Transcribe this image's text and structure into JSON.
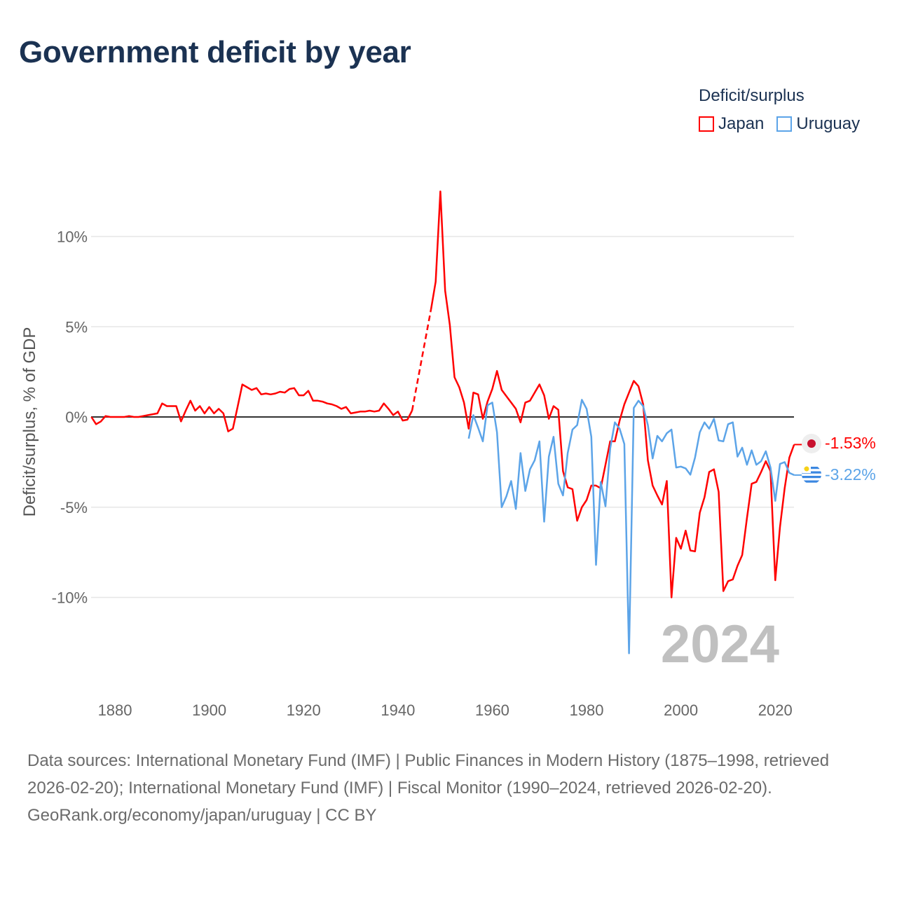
{
  "title": "Government deficit by year",
  "legend": {
    "title": "Deficit/surplus",
    "items": [
      {
        "label": "Japan",
        "color": "#ff0000"
      },
      {
        "label": "Uruguay",
        "color": "#5ca4e8"
      }
    ]
  },
  "footer": {
    "sources": "Data sources: International Monetary Fund (IMF) | Public Finances in Modern History (1875–1998, retrieved 2026-02-20); International Monetary Fund (IMF) | Fiscal Monitor (1990–2024, retrieved 2026-02-20).",
    "credit": "GeoRank.org/economy/japan/uruguay | CC BY"
  },
  "chart_data": {
    "type": "line",
    "title": "Government deficit by year",
    "xlabel": "",
    "ylabel": "Deficit/surplus, % of GDP",
    "xlim": [
      1875,
      2024
    ],
    "ylim": [
      -13.5,
      13
    ],
    "x_ticks": [
      1880,
      1900,
      1920,
      1940,
      1960,
      1980,
      2000,
      2020
    ],
    "y_ticks": [
      10,
      5,
      0,
      -5,
      -10
    ],
    "y_tick_labels": [
      "10%",
      "5%",
      "0%",
      "-5%",
      "-10%"
    ],
    "grid": true,
    "legend_position": "top-right",
    "current_year_label": "2024",
    "series": [
      {
        "name": "Japan",
        "color": "#ff0000",
        "start_year": 1875,
        "end_label": "-1.53%",
        "values": [
          0,
          -0.4,
          -0.25,
          0.05,
          0,
          0,
          0,
          0,
          0.05,
          0,
          0,
          0.05,
          0.1,
          0.15,
          0.2,
          0.75,
          0.6,
          0.6,
          0.6,
          -0.25,
          0.35,
          0.9,
          0.35,
          0.6,
          0.2,
          0.55,
          0.2,
          0.45,
          0.2,
          -0.8,
          -0.65,
          0.55,
          1.8,
          1.65,
          1.5,
          1.6,
          1.25,
          1.3,
          1.25,
          1.3,
          1.4,
          1.35,
          1.55,
          1.6,
          1.2,
          1.2,
          1.45,
          0.9,
          0.9,
          0.85,
          0.75,
          0.7,
          0.6,
          0.45,
          0.55,
          0.2,
          0.25,
          0.3,
          0.3,
          0.35,
          0.3,
          0.35,
          0.75,
          0.45,
          0.1,
          0.3,
          -0.2,
          -0.15,
          0.35,
          null,
          null,
          null,
          5.95,
          7.5,
          12.5,
          7.0,
          5.1,
          2.2,
          1.65,
          0.8,
          -0.65,
          1.35,
          1.25,
          -0.1,
          0.85,
          1.55,
          2.55,
          1.5,
          1.15,
          0.8,
          0.45,
          -0.3,
          0.8,
          0.9,
          1.35,
          1.8,
          1.2,
          -0.1,
          0.6,
          0.4,
          -3.0,
          -3.9,
          -4.0,
          -5.75,
          -5.0,
          -4.6,
          -3.8,
          -3.8,
          -3.95,
          -2.65,
          -1.35,
          -1.35,
          -0.2,
          0.7,
          1.35,
          2.0,
          1.7,
          0.7,
          -2.4,
          -3.8,
          -4.35,
          -4.85,
          -3.55,
          -10.0,
          -6.7,
          -7.3,
          -6.3,
          -7.4,
          -7.45,
          -5.3,
          -4.45,
          -3.05,
          -2.9,
          -4.15,
          -9.65,
          -9.1,
          -9.0,
          -8.25,
          -7.65,
          -5.6,
          -3.7,
          -3.6,
          -3.05,
          -2.45,
          -3.0,
          -9.05,
          -6.1,
          -3.95,
          -2.25,
          -1.53
        ]
      },
      {
        "name": "Uruguay",
        "color": "#5ca4e8",
        "start_year": 1955,
        "end_label": "-3.22%",
        "values": [
          -1.2,
          0.1,
          -0.6,
          -1.35,
          0.65,
          0.8,
          -0.85,
          -5.0,
          -4.4,
          -3.55,
          -5.1,
          -2.0,
          -4.1,
          -2.9,
          -2.4,
          -1.35,
          -5.8,
          -2.2,
          -1.1,
          -3.7,
          -4.35,
          -2.0,
          -0.7,
          -0.45,
          0.95,
          0.45,
          -1.1,
          -8.2,
          -3.6,
          -4.95,
          -1.75,
          -0.3,
          -0.65,
          -1.5,
          -13.1,
          0.5,
          0.9,
          0.6,
          -0.45,
          -2.3,
          -1.05,
          -1.35,
          -0.9,
          -0.7,
          -2.8,
          -2.75,
          -2.85,
          -3.2,
          -2.25,
          -0.85,
          -0.3,
          -0.65,
          -0.1,
          -1.3,
          -1.35,
          -0.4,
          -0.3,
          -2.2,
          -1.7,
          -2.65,
          -1.85,
          -2.65,
          -2.45,
          -1.9,
          -2.8,
          -4.65,
          -2.6,
          -2.5,
          -3.1,
          -3.22
        ]
      }
    ]
  }
}
